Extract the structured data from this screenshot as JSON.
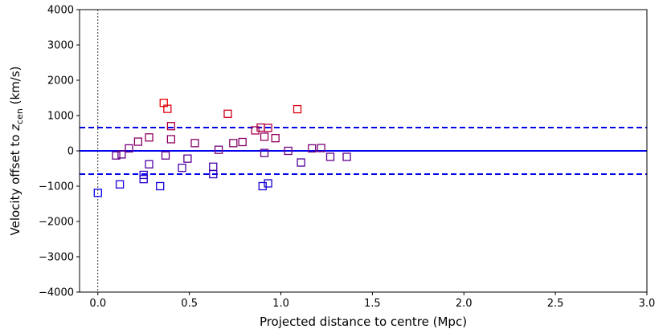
{
  "chart_data": {
    "type": "scatter",
    "xlabel": "Projected distance to centre (Mpc)",
    "ylabel": "Velocity offset to z_cen (km/s)",
    "ylabel_main": "Velocity offset to ",
    "ylabel_var": "z",
    "ylabel_sub": "cen",
    "ylabel_unit": " (km/s)",
    "xlim": [
      -0.1,
      3.0
    ],
    "ylim": [
      -4000,
      4000
    ],
    "xticks": [
      0.0,
      0.5,
      1.0,
      1.5,
      2.0,
      2.5,
      3.0
    ],
    "xtick_labels": [
      "0.0",
      "0.5",
      "1.0",
      "1.5",
      "2.0",
      "2.5",
      "3.0"
    ],
    "yticks": [
      -4000,
      -3000,
      -2000,
      -1000,
      0,
      1000,
      2000,
      3000,
      4000
    ],
    "ytick_labels": [
      "−4000",
      "−3000",
      "−2000",
      "−1000",
      "0",
      "1000",
      "2000",
      "3000",
      "4000"
    ],
    "grid": false,
    "legend": "none",
    "reference_lines": {
      "zero_velocity": 0,
      "upper_dispersion": 660,
      "lower_dispersion": -660,
      "centre_distance": 0.0,
      "line_color": "#0000ee",
      "centre_color": "#000000"
    },
    "marker": "open-square",
    "color_scale": {
      "low": "#0000ee",
      "high": "#ee0000",
      "vmin": -1200,
      "vmax": 1360
    },
    "points": [
      {
        "x": 0.0,
        "y": -1190
      },
      {
        "x": 0.1,
        "y": -130
      },
      {
        "x": 0.12,
        "y": -950
      },
      {
        "x": 0.13,
        "y": -100
      },
      {
        "x": 0.17,
        "y": 70
      },
      {
        "x": 0.22,
        "y": 260
      },
      {
        "x": 0.25,
        "y": -680
      },
      {
        "x": 0.25,
        "y": -800
      },
      {
        "x": 0.28,
        "y": -380
      },
      {
        "x": 0.28,
        "y": 380
      },
      {
        "x": 0.34,
        "y": -1000
      },
      {
        "x": 0.36,
        "y": 1360
      },
      {
        "x": 0.37,
        "y": -130
      },
      {
        "x": 0.38,
        "y": 1190
      },
      {
        "x": 0.4,
        "y": 700
      },
      {
        "x": 0.4,
        "y": 330
      },
      {
        "x": 0.46,
        "y": -480
      },
      {
        "x": 0.49,
        "y": -220
      },
      {
        "x": 0.53,
        "y": 220
      },
      {
        "x": 0.63,
        "y": -450
      },
      {
        "x": 0.63,
        "y": -660
      },
      {
        "x": 0.66,
        "y": 30
      },
      {
        "x": 0.71,
        "y": 1050
      },
      {
        "x": 0.74,
        "y": 220
      },
      {
        "x": 0.79,
        "y": 250
      },
      {
        "x": 0.86,
        "y": 580
      },
      {
        "x": 0.89,
        "y": 660
      },
      {
        "x": 0.9,
        "y": -1000
      },
      {
        "x": 0.91,
        "y": 400
      },
      {
        "x": 0.91,
        "y": -60
      },
      {
        "x": 0.93,
        "y": 650
      },
      {
        "x": 0.93,
        "y": -920
      },
      {
        "x": 0.97,
        "y": 360
      },
      {
        "x": 1.04,
        "y": 0
      },
      {
        "x": 1.09,
        "y": 1180
      },
      {
        "x": 1.11,
        "y": -330
      },
      {
        "x": 1.17,
        "y": 70
      },
      {
        "x": 1.22,
        "y": 80
      },
      {
        "x": 1.27,
        "y": -170
      },
      {
        "x": 1.36,
        "y": -170
      }
    ]
  }
}
